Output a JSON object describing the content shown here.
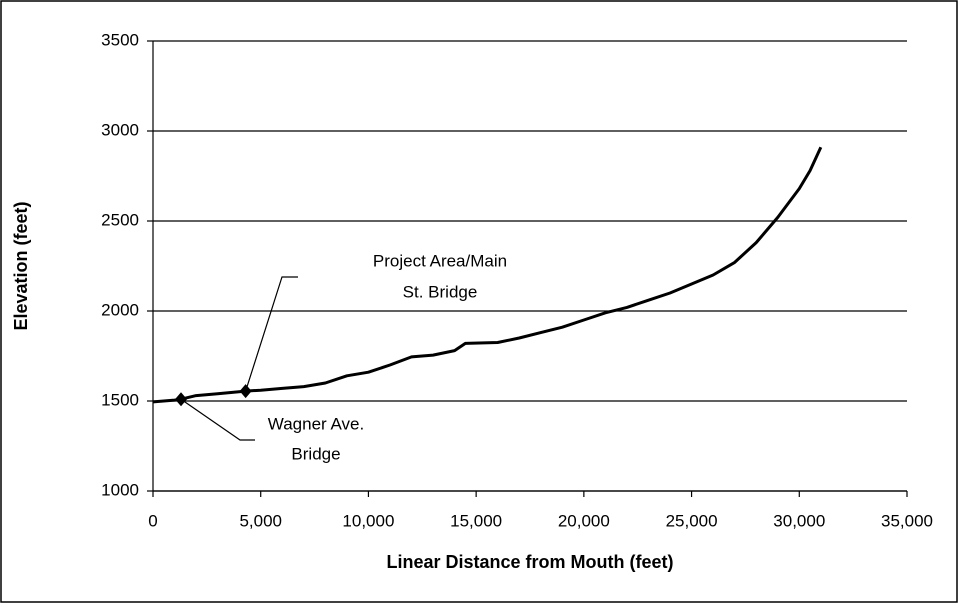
{
  "chart_data": {
    "type": "line",
    "xlabel": "Linear Distance from Mouth (feet)",
    "ylabel": "Elevation (feet)",
    "xlim": [
      0,
      35000
    ],
    "xticks": [
      0,
      {
        "value": 5000,
        "label": "5,000"
      },
      {
        "value": 10000,
        "label": "10,000"
      },
      {
        "value": 15000,
        "label": "15,000"
      },
      {
        "value": 20000,
        "label": "20,000"
      },
      {
        "value": 25000,
        "label": "25,000"
      },
      {
        "value": 30000,
        "label": "30,000"
      },
      {
        "value": 35000,
        "label": "35,000"
      }
    ],
    "ylim": [
      1000,
      3500
    ],
    "yticks": [
      1000,
      1500,
      2000,
      2500,
      3000,
      3500
    ],
    "grid": true,
    "color": "#000000",
    "x": [
      0,
      1000,
      1300,
      2000,
      3000,
      4300,
      5000,
      6000,
      7000,
      8000,
      9000,
      10000,
      11000,
      12000,
      13000,
      14000,
      14500,
      16000,
      17000,
      18000,
      19000,
      20000,
      21000,
      22000,
      23000,
      24000,
      25000,
      26000,
      27000,
      28000,
      29000,
      30000,
      30500,
      31000
    ],
    "values": [
      1495,
      1505,
      1510,
      1530,
      1540,
      1555,
      1560,
      1570,
      1580,
      1600,
      1640,
      1660,
      1700,
      1745,
      1755,
      1780,
      1820,
      1825,
      1850,
      1880,
      1910,
      1950,
      1990,
      2020,
      2060,
      2100,
      2150,
      2200,
      2270,
      2380,
      2520,
      2680,
      2780,
      2910
    ],
    "annotations": [
      {
        "text": [
          "Project Area/Main",
          "St. Bridge"
        ],
        "x": 4300,
        "y": 1555
      },
      {
        "text": [
          "Wagner Ave.",
          "Bridge"
        ],
        "x": 1300,
        "y": 1510
      }
    ]
  }
}
